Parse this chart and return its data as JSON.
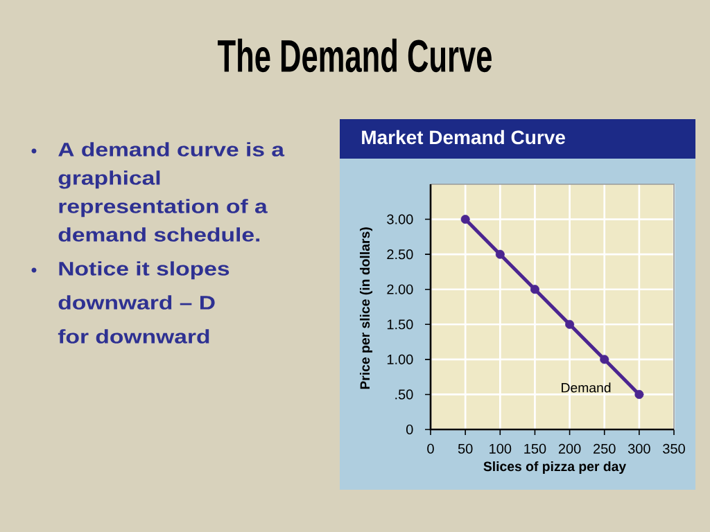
{
  "chart_data": {
    "type": "line",
    "title": "The Demand Curve",
    "subtitle": "Market Demand Curve",
    "xlabel": "Slices of pizza per day",
    "ylabel": "Price per slice (in dollars)",
    "x": [
      50,
      100,
      150,
      200,
      250,
      300
    ],
    "series": [
      {
        "name": "Demand",
        "color": "#4b2590",
        "values": [
          3.0,
          2.5,
          2.0,
          1.5,
          1.0,
          0.5
        ]
      }
    ],
    "xlim": [
      0,
      350
    ],
    "ylim": [
      0,
      3.5
    ],
    "xticks": [
      0,
      50,
      100,
      150,
      200,
      250,
      300,
      350
    ],
    "yticks": [
      {
        "value": 0,
        "label": "0"
      },
      {
        "value": 0.5,
        "label": ".50"
      },
      {
        "value": 1,
        "label": "1.00"
      },
      {
        "value": 1.5,
        "label": "1.50"
      },
      {
        "value": 2,
        "label": "2.00"
      },
      {
        "value": 2.5,
        "label": "2.50"
      },
      {
        "value": 3,
        "label": "3.00"
      }
    ],
    "grid": true,
    "marker": "circle",
    "line_style": "solid",
    "annotations": [
      "A demand curve is a graphical representation of a demand schedule.",
      "Notice it slopes downward – D for downward"
    ]
  }
}
